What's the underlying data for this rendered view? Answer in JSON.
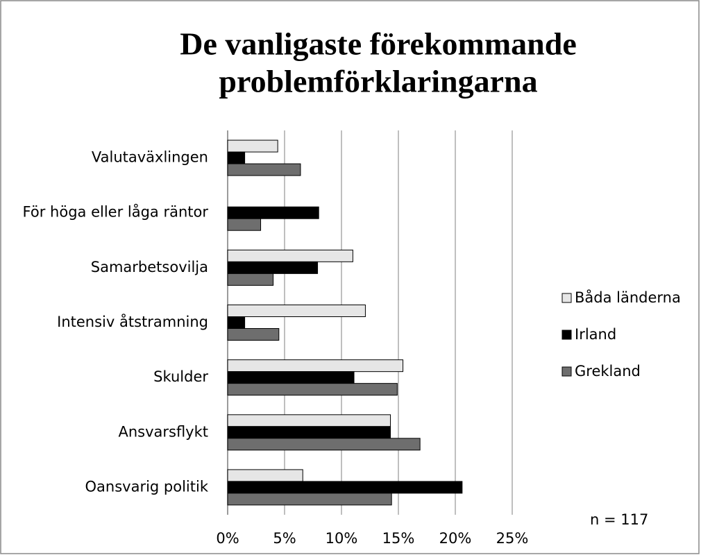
{
  "chart_data": {
    "type": "hbar",
    "title": [
      "De vanligaste förekommande",
      "problemförklaringarna"
    ],
    "categories": [
      "Valutaväxlingen",
      "För höga eller låga räntor",
      "Samarbetsovilja",
      "Intensiv åtstramning",
      "Skulder",
      "Ansvarsflykt",
      "Oansvarig politik"
    ],
    "series": [
      {
        "name": "Båda länderna",
        "color": "#e6e6e6",
        "values": [
          4.4,
          0,
          11.0,
          12.1,
          15.4,
          14.3,
          6.6
        ]
      },
      {
        "name": "Irland",
        "color": "#000000",
        "values": [
          1.5,
          8.0,
          7.9,
          1.5,
          11.1,
          14.3,
          20.6
        ]
      },
      {
        "name": "Grekland",
        "color": "#6e6e6e",
        "values": [
          6.4,
          2.9,
          4.0,
          4.5,
          14.9,
          16.9,
          14.4
        ]
      }
    ],
    "xlim": [
      0,
      25
    ],
    "xticks": [
      {
        "value": 0,
        "label": "0%"
      },
      {
        "value": 5,
        "label": "5%"
      },
      {
        "value": 10,
        "label": "10%"
      },
      {
        "value": 15,
        "label": "15%"
      },
      {
        "value": 20,
        "label": "20%"
      },
      {
        "value": 25,
        "label": "25%"
      }
    ],
    "grid": true,
    "legend": "right",
    "annotation": "n = 117"
  }
}
